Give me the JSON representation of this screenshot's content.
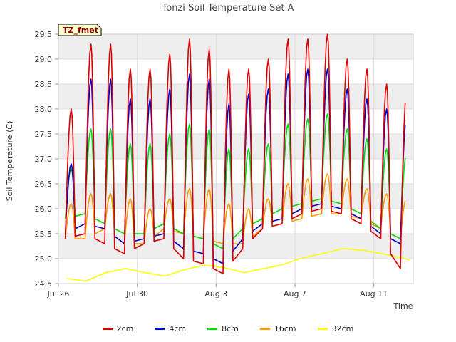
{
  "chart_data": {
    "type": "line",
    "title": "Tonzi Soil Temperature Set A",
    "xlabel": "Time",
    "ylabel": "Soil Temperature (C)",
    "annotation": "TZ_fmet",
    "x_ticks": [
      "Jul 26",
      "Jul 30",
      "Aug 3",
      "Aug 7",
      "Aug 11"
    ],
    "y_ticks": [
      "24.5",
      "25.0",
      "25.5",
      "26.0",
      "26.5",
      "27.0",
      "27.5",
      "28.0",
      "28.5",
      "29.0",
      "29.5"
    ],
    "ylim": [
      24.5,
      29.5
    ],
    "xlim_days_from_jul26": [
      0,
      18
    ],
    "grid": true,
    "legend_position": "bottom",
    "x_start_date": "Jul 26",
    "series": [
      {
        "name": "2cm",
        "color": "#dd0000",
        "daily": [
          {
            "day": "Jul 26",
            "max": 28.0,
            "min": 25.4
          },
          {
            "day": "Jul 27",
            "max": 29.3,
            "min": 25.5
          },
          {
            "day": "Jul 28",
            "max": 29.3,
            "min": 25.3
          },
          {
            "day": "Jul 29",
            "max": 28.8,
            "min": 25.1
          },
          {
            "day": "Jul 30",
            "max": 28.8,
            "min": 25.3
          },
          {
            "day": "Jul 31",
            "max": 29.1,
            "min": 25.4
          },
          {
            "day": "Aug 1",
            "max": 29.4,
            "min": 25.0
          },
          {
            "day": "Aug 2",
            "max": 29.2,
            "min": 24.9
          },
          {
            "day": "Aug 3",
            "max": 28.8,
            "min": 24.7
          },
          {
            "day": "Aug 4",
            "max": 28.8,
            "min": 25.2
          },
          {
            "day": "Aug 5",
            "max": 29.0,
            "min": 25.6
          },
          {
            "day": "Aug 6",
            "max": 29.4,
            "min": 25.7
          },
          {
            "day": "Aug 7",
            "max": 29.4,
            "min": 25.9
          },
          {
            "day": "Aug 8",
            "max": 29.5,
            "min": 26.0
          },
          {
            "day": "Aug 9",
            "max": 29.0,
            "min": 25.9
          },
          {
            "day": "Aug 10",
            "max": 28.8,
            "min": 25.7
          },
          {
            "day": "Aug 11",
            "max": 28.5,
            "min": 25.4
          },
          {
            "day": "Aug 12",
            "max": 28.3,
            "min": 24.8
          }
        ]
      },
      {
        "name": "4cm",
        "color": "#0000cc",
        "daily": [
          {
            "day": "Jul 26",
            "max": 26.9,
            "min": 25.5
          },
          {
            "day": "Jul 27",
            "max": 28.6,
            "min": 25.7
          },
          {
            "day": "Jul 28",
            "max": 28.6,
            "min": 25.6
          },
          {
            "day": "Jul 29",
            "max": 28.2,
            "min": 25.3
          },
          {
            "day": "Jul 30",
            "max": 28.2,
            "min": 25.4
          },
          {
            "day": "Jul 31",
            "max": 28.4,
            "min": 25.5
          },
          {
            "day": "Aug 1",
            "max": 28.7,
            "min": 25.2
          },
          {
            "day": "Aug 2",
            "max": 28.6,
            "min": 25.1
          },
          {
            "day": "Aug 3",
            "max": 28.1,
            "min": 24.9
          },
          {
            "day": "Aug 4",
            "max": 28.3,
            "min": 25.4
          },
          {
            "day": "Aug 5",
            "max": 28.4,
            "min": 25.7
          },
          {
            "day": "Aug 6",
            "max": 28.7,
            "min": 25.8
          },
          {
            "day": "Aug 7",
            "max": 28.8,
            "min": 26.0
          },
          {
            "day": "Aug 8",
            "max": 28.8,
            "min": 26.1
          },
          {
            "day": "Aug 9",
            "max": 28.4,
            "min": 26.0
          },
          {
            "day": "Aug 10",
            "max": 28.2,
            "min": 25.8
          },
          {
            "day": "Aug 11",
            "max": 28.0,
            "min": 25.5
          },
          {
            "day": "Aug 12",
            "max": 27.8,
            "min": 25.3
          }
        ]
      },
      {
        "name": "8cm",
        "color": "#00dd00",
        "daily": [
          {
            "day": "Jul 26",
            "max": 26.8,
            "min": 25.8
          },
          {
            "day": "Jul 27",
            "max": 27.6,
            "min": 25.9
          },
          {
            "day": "Jul 28",
            "max": 27.6,
            "min": 25.7
          },
          {
            "day": "Jul 29",
            "max": 27.3,
            "min": 25.5
          },
          {
            "day": "Jul 30",
            "max": 27.3,
            "min": 25.5
          },
          {
            "day": "Jul 31",
            "max": 27.5,
            "min": 25.7
          },
          {
            "day": "Aug 1",
            "max": 27.7,
            "min": 25.5
          },
          {
            "day": "Aug 2",
            "max": 27.6,
            "min": 25.4
          },
          {
            "day": "Aug 3",
            "max": 27.2,
            "min": 25.2
          },
          {
            "day": "Aug 4",
            "max": 27.2,
            "min": 25.6
          },
          {
            "day": "Aug 5",
            "max": 27.3,
            "min": 25.8
          },
          {
            "day": "Aug 6",
            "max": 27.7,
            "min": 26.0
          },
          {
            "day": "Aug 7",
            "max": 27.8,
            "min": 26.1
          },
          {
            "day": "Aug 8",
            "max": 27.9,
            "min": 26.2
          },
          {
            "day": "Aug 9",
            "max": 27.6,
            "min": 26.1
          },
          {
            "day": "Aug 10",
            "max": 27.4,
            "min": 25.9
          },
          {
            "day": "Aug 11",
            "max": 27.2,
            "min": 25.6
          },
          {
            "day": "Aug 12",
            "max": 27.1,
            "min": 25.4
          }
        ]
      },
      {
        "name": "16cm",
        "color": "#ff9900",
        "daily": [
          {
            "day": "Jul 26",
            "max": 26.1,
            "min": 25.4
          },
          {
            "day": "Jul 27",
            "max": 26.3,
            "min": 25.4
          },
          {
            "day": "Jul 28",
            "max": 26.3,
            "min": 25.6
          },
          {
            "day": "Jul 29",
            "max": 26.2,
            "min": 25.3
          },
          {
            "day": "Jul 30",
            "max": 26.0,
            "min": 25.3
          },
          {
            "day": "Jul 31",
            "max": 26.2,
            "min": 25.6
          },
          {
            "day": "Aug 1",
            "max": 26.4,
            "min": 25.5
          },
          {
            "day": "Aug 2",
            "max": 26.4,
            "min": 25.4
          },
          {
            "day": "Aug 3",
            "max": 26.1,
            "min": 25.3
          },
          {
            "day": "Aug 4",
            "max": 26.0,
            "min": 25.3
          },
          {
            "day": "Aug 5",
            "max": 26.2,
            "min": 25.6
          },
          {
            "day": "Aug 6",
            "max": 26.5,
            "min": 25.7
          },
          {
            "day": "Aug 7",
            "max": 26.6,
            "min": 25.8
          },
          {
            "day": "Aug 8",
            "max": 26.7,
            "min": 25.9
          },
          {
            "day": "Aug 9",
            "max": 26.6,
            "min": 25.9
          },
          {
            "day": "Aug 10",
            "max": 26.4,
            "min": 25.8
          },
          {
            "day": "Aug 11",
            "max": 26.3,
            "min": 25.6
          },
          {
            "day": "Aug 12",
            "max": 26.2,
            "min": 25.4
          }
        ]
      },
      {
        "name": "32cm",
        "color": "#ffff00",
        "points": [
          {
            "x": "Jul 26",
            "y": 24.6
          },
          {
            "x": "Jul 27",
            "y": 24.55
          },
          {
            "x": "Jul 28",
            "y": 24.72
          },
          {
            "x": "Jul 29",
            "y": 24.8
          },
          {
            "x": "Jul 30",
            "y": 24.72
          },
          {
            "x": "Jul 31",
            "y": 24.65
          },
          {
            "x": "Aug 1",
            "y": 24.78
          },
          {
            "x": "Aug 2",
            "y": 24.87
          },
          {
            "x": "Aug 3",
            "y": 24.82
          },
          {
            "x": "Aug 4",
            "y": 24.72
          },
          {
            "x": "Aug 5",
            "y": 24.8
          },
          {
            "x": "Aug 6",
            "y": 24.88
          },
          {
            "x": "Aug 7",
            "y": 25.02
          },
          {
            "x": "Aug 8",
            "y": 25.1
          },
          {
            "x": "Aug 9",
            "y": 25.2
          },
          {
            "x": "Aug 10",
            "y": 25.17
          },
          {
            "x": "Aug 11",
            "y": 25.1
          },
          {
            "x": "Aug 12",
            "y": 25.02
          },
          {
            "x": "Aug 12",
            "y": 24.97
          }
        ]
      }
    ]
  }
}
